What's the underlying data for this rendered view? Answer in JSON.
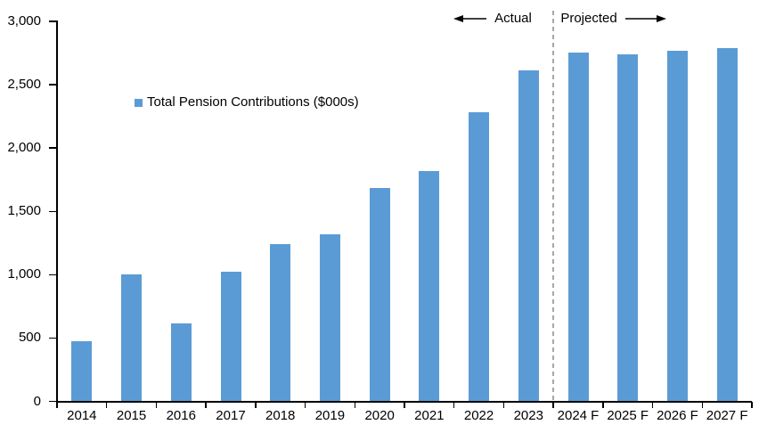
{
  "chart_data": {
    "type": "bar",
    "title": "",
    "legend": "Total Pension Contributions ($000s)",
    "categories": [
      "2014",
      "2015",
      "2016",
      "2017",
      "2018",
      "2019",
      "2020",
      "2021",
      "2022",
      "2023",
      "2024 F",
      "2025 F",
      "2026 F",
      "2027 F"
    ],
    "values": [
      475,
      1000,
      615,
      1025,
      1245,
      1320,
      1685,
      1820,
      2280,
      2615,
      2755,
      2740,
      2770,
      2790
    ],
    "ylim": [
      0,
      3000
    ],
    "y_ticks": [
      0,
      500,
      1000,
      1500,
      2000,
      2500,
      3000
    ],
    "y_tick_labels": [
      "0",
      "500",
      "1,000",
      "1,500",
      "2,000",
      "2,500",
      "3,000"
    ],
    "bar_color": "#5B9BD5",
    "divider_color": "#A6A6A6",
    "axis_color": "#000000",
    "grid": false,
    "legend_position": "upper-left-inside",
    "divider_after_category": "2023",
    "annotations": {
      "left_label": "Actual",
      "right_label": "Projected"
    }
  }
}
